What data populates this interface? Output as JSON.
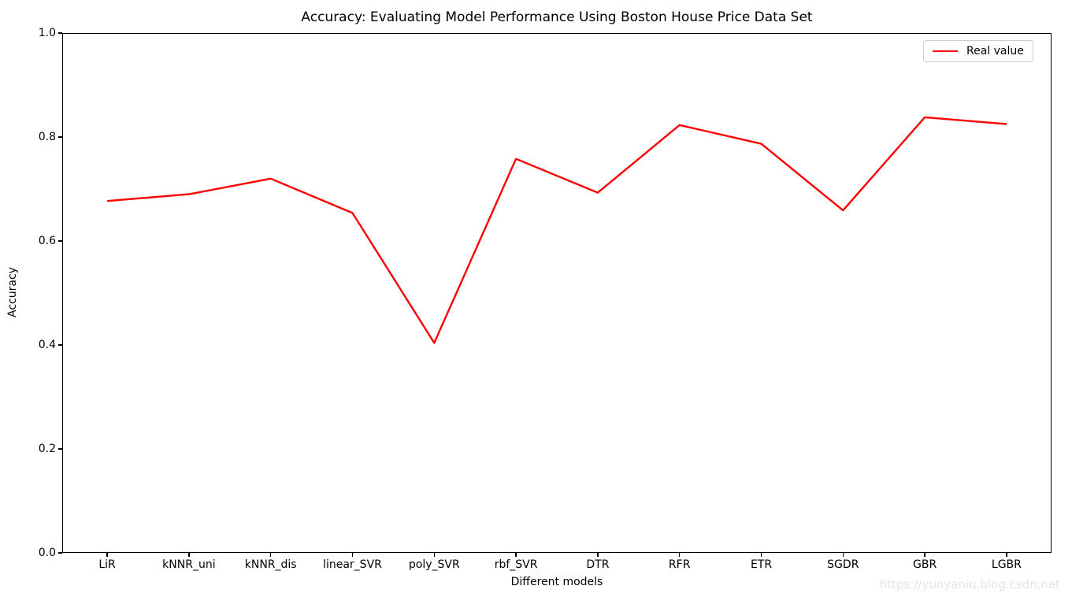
{
  "watermark": "https://yunyaniu.blog.csdn.net",
  "chart_data": {
    "type": "line",
    "title": "Accuracy: Evaluating Model Performance Using Boston House Price Data Set",
    "xlabel": "Different models",
    "ylabel": "Accuracy",
    "categories": [
      "LiR",
      "kNNR_uni",
      "kNNR_dis",
      "linear_SVR",
      "poly_SVR",
      "rbf_SVR",
      "DTR",
      "RFR",
      "ETR",
      "SGDR",
      "GBR",
      "LGBR"
    ],
    "series": [
      {
        "name": "Real value",
        "color": "#ff0000",
        "values": [
          0.677,
          0.69,
          0.72,
          0.654,
          0.404,
          0.758,
          0.693,
          0.823,
          0.787,
          0.659,
          0.838,
          0.825
        ]
      }
    ],
    "ylim": [
      0.0,
      1.0
    ],
    "yticks": [
      "0.0",
      "0.2",
      "0.4",
      "0.6",
      "0.8",
      "1.0"
    ],
    "grid": false,
    "legend": {
      "position": "upper right",
      "entries": [
        "Real value"
      ]
    }
  }
}
